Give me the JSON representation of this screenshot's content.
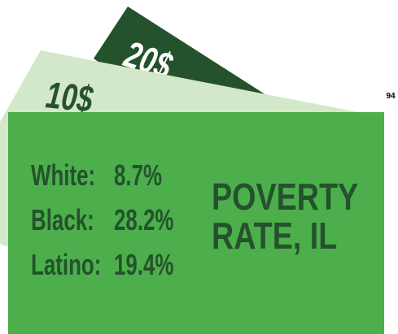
{
  "bills": [
    {
      "label": "20$"
    },
    {
      "label": "10$"
    }
  ],
  "page_number": "94",
  "title": [
    "POVERTY",
    "RATE, IL"
  ],
  "rows": [
    {
      "label": "White:",
      "value": "8.7%"
    },
    {
      "label": "Black:",
      "value": "28.2%"
    },
    {
      "label": "Latino:",
      "value": "19.4%"
    }
  ]
}
